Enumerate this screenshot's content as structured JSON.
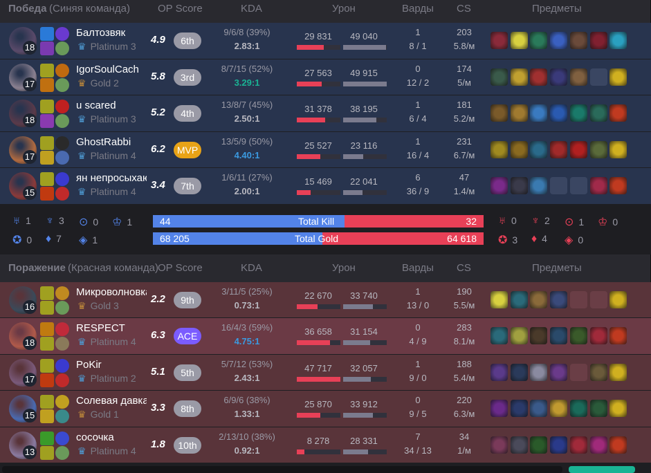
{
  "headers": {
    "ops": "OP Score",
    "kda": "KDA",
    "dmg": "Урон",
    "wards": "Варды",
    "cs": "CS",
    "items": "Предметы"
  },
  "blue": {
    "result": "Победа",
    "team": "(Синяя команда)",
    "color": "#5383e8"
  },
  "red": {
    "result": "Поражение",
    "team": "(Красная команда)",
    "color": "#e84057"
  },
  "players_blue": [
    {
      "name": "Балтозвяк",
      "level": "18",
      "tier": "Platinum 3",
      "tier_color": "#4e9bd3",
      "score": "4.9",
      "badge": "6th",
      "kda": "9/6/8 (39%)",
      "ratio": "2.83:1",
      "dealt": 29831,
      "taken": 49040,
      "dealt_label": "29 831",
      "taken_label": "49 040",
      "wards": "1",
      "wards2": "8 / 1",
      "cs": "203",
      "csm": "5.8/м",
      "items": [
        "#8a2a3a",
        "#d8d040",
        "#2a7a5a",
        "#3a60c0",
        "#6a4a3a",
        "#802030",
        "#2aa0c0"
      ],
      "avatar": "#5a4a6a",
      "spells": [
        "#2a7ad8",
        "#6a3ad0",
        "#7a3ab0",
        "#6a9a5a"
      ]
    },
    {
      "name": "IgorSoulCach",
      "level": "17",
      "tier": "Gold 2",
      "tier_color": "#c08a3a",
      "score": "5.8",
      "badge": "3rd",
      "kda": "8/7/15 (52%)",
      "ratio": "3.29:1",
      "ratio_color": "#1ab394",
      "dealt": 27563,
      "taken": 49915,
      "dealt_label": "27 563",
      "taken_label": "49 915",
      "wards": "0",
      "wards2": "12 / 2",
      "cs": "174",
      "csm": "5/м",
      "items": [
        "#3a5a4a",
        "#c0a030",
        "#a03030",
        "#3a3a7a",
        "#806040",
        "empty",
        "#d0b020"
      ],
      "avatar": "#8a8090",
      "spells": [
        "#a0a020",
        "#c06a10",
        "#c07010",
        "#6a9a5a"
      ]
    },
    {
      "name": "u scared",
      "level": "18",
      "tier": "Platinum 3",
      "tier_color": "#4e9bd3",
      "score": "5.2",
      "badge": "4th",
      "kda": "13/8/7 (45%)",
      "ratio": "2.50:1",
      "dealt": 31378,
      "taken": 38195,
      "dealt_label": "31 378",
      "taken_label": "38 195",
      "wards": "1",
      "wards2": "6 / 4",
      "cs": "181",
      "csm": "5.2/м",
      "items": [
        "#7a5a2a",
        "#a07a30",
        "#3a7ac0",
        "#2a5ab0",
        "#1a7a6a",
        "#2a6a5a",
        "#c03a20"
      ],
      "avatar": "#5a3a4a",
      "spells": [
        "#a0a020",
        "#c02020",
        "#8a3ab0",
        "#6a9a5a"
      ]
    },
    {
      "name": "GhostRabbi",
      "level": "17",
      "tier": "Platinum 4",
      "tier_color": "#4e9bd3",
      "score": "6.2",
      "badge": "MVP",
      "badge_color": "#e8a317",
      "kda": "13/5/9 (50%)",
      "ratio": "4.40:1",
      "ratio_color": "#3b9ae1",
      "dealt": 25527,
      "taken": 23116,
      "dealt_label": "25 527",
      "taken_label": "23 116",
      "wards": "1",
      "wards2": "16 / 4",
      "cs": "231",
      "csm": "6.7/м",
      "items": [
        "#a08a20",
        "#8a6a20",
        "#2a6a8a",
        "#a02a2a",
        "#b02020",
        "#5a6a3a",
        "#d0b020"
      ],
      "avatar": "#b06a40",
      "spells": [
        "#a0a020",
        "#2a2a2a",
        "#c0a020",
        "#4a6ab0"
      ]
    },
    {
      "name": "ян непросыхаю",
      "level": "15",
      "tier": "Platinum 4",
      "tier_color": "#4e9bd3",
      "score": "3.4",
      "badge": "7th",
      "kda": "1/6/11 (27%)",
      "ratio": "2.00:1",
      "dealt": 15469,
      "taken": 22041,
      "dealt_label": "15 469",
      "taken_label": "22 041",
      "wards": "6",
      "wards2": "36 / 9",
      "cs": "47",
      "csm": "1.4/м",
      "items": [
        "#7a2a8a",
        "#3a3a4a",
        "#3a7ab0",
        "empty",
        "empty",
        "#a02a4a",
        "#c03a20"
      ],
      "avatar": "#8a3a3a",
      "spells": [
        "#a0a020",
        "#3a3ad0",
        "#c03a10",
        "#c02a2a"
      ]
    }
  ],
  "players_red": [
    {
      "name": "Микроволновка",
      "level": "16",
      "tier": "Gold 3",
      "tier_color": "#c08a3a",
      "score": "2.2",
      "badge": "9th",
      "kda": "3/11/5 (25%)",
      "ratio": "0.73:1",
      "dealt": 22670,
      "taken": 33740,
      "dealt_label": "22 670",
      "taken_label": "33 740",
      "wards": "1",
      "wards2": "13 / 0",
      "cs": "190",
      "csm": "5.5/м",
      "items": [
        "#d8d040",
        "#2a6a7a",
        "#8a6a3a",
        "#3a4a7a",
        "empty",
        "empty",
        "#d0b020"
      ],
      "avatar": "#3a4a5a",
      "spells": [
        "#a0a020",
        "#c08a20",
        "#a0a020",
        "#6a9a5a"
      ]
    },
    {
      "name": "RESPECT",
      "level": "18",
      "tier": "Platinum 4",
      "tier_color": "#4e9bd3",
      "score": "6.3",
      "badge": "ACE",
      "badge_color": "#7b5cff",
      "kda": "16/4/3 (59%)",
      "ratio": "4.75:1",
      "ratio_color": "#3b9ae1",
      "dealt": 36658,
      "taken": 31154,
      "dealt_label": "36 658",
      "taken_label": "31 154",
      "wards": "0",
      "wards2": "4 / 9",
      "cs": "283",
      "csm": "8.1/м",
      "items": [
        "#2a6a7a",
        "#a0a040",
        "#4a3a2a",
        "#2a4a6a",
        "#3a5a2a",
        "#a02a3a",
        "#c03a20"
      ],
      "avatar": "#b05a4a",
      "spells": [
        "#c07a10",
        "#c02a3a",
        "#a0a020",
        "#8a7a5a"
      ]
    },
    {
      "name": "PoKir",
      "level": "17",
      "tier": "Platinum 2",
      "tier_color": "#4e9bd3",
      "score": "5.1",
      "badge": "5th",
      "kda": "5/7/12 (53%)",
      "ratio": "2.43:1",
      "dealt": 47717,
      "taken": 32057,
      "dealt_label": "47 717",
      "taken_label": "32 057",
      "wards": "1",
      "wards2": "9 / 0",
      "cs": "188",
      "csm": "5.4/м",
      "items": [
        "#5a3a8a",
        "#2a3a5a",
        "#8a8aa0",
        "#6a3a8a",
        "empty",
        "#6a5a3a",
        "#d0b020"
      ],
      "avatar": "#7a5a7a",
      "spells": [
        "#a0a020",
        "#3a3ad0",
        "#c03a10",
        "#c02a2a"
      ]
    },
    {
      "name": "Солевая давка",
      "level": "15",
      "tier": "Gold 1",
      "tier_color": "#c08a3a",
      "score": "3.3",
      "badge": "8th",
      "kda": "6/9/6 (38%)",
      "ratio": "1.33:1",
      "dealt": 25870,
      "taken": 33912,
      "dealt_label": "25 870",
      "taken_label": "33 912",
      "wards": "0",
      "wards2": "9 / 5",
      "cs": "220",
      "csm": "6.3/м",
      "items": [
        "#6a2a8a",
        "#2a3a6a",
        "#3a5a8a",
        "#c09a30",
        "#1a6a5a",
        "#2a5a3a",
        "#d0b020"
      ],
      "avatar": "#4a6ab0",
      "spells": [
        "#a0a020",
        "#c0a020",
        "#c0a020",
        "#3a8a8a"
      ]
    },
    {
      "name": "сосочка",
      "level": "13",
      "tier": "Platinum 4",
      "tier_color": "#4e9bd3",
      "score": "1.8",
      "badge": "10th",
      "kda": "2/13/10 (38%)",
      "ratio": "0.92:1",
      "dealt": 8278,
      "taken": 28331,
      "dealt_label": "8 278",
      "taken_label": "28 331",
      "wards": "7",
      "wards2": "34 / 13",
      "cs": "34",
      "csm": "1/м",
      "items": [
        "#7a3a5a",
        "#4a4a5a",
        "#2a5a2a",
        "#2a3a8a",
        "#a02a3a",
        "#a02a7a",
        "#c03a20"
      ],
      "avatar": "#8a7aa0",
      "spells": [
        "#3a9a2a",
        "#3a4ad0",
        "#a0a020",
        "#6a9a5a"
      ]
    }
  ],
  "summary": {
    "blue_objectives": [
      {
        "icon": "baron-icon",
        "count": "1"
      },
      {
        "icon": "dragon-icon",
        "count": "3"
      },
      {
        "icon": "herald-icon",
        "count": "0"
      },
      {
        "icon": "grubs-icon",
        "count": "1"
      },
      {
        "icon": "tower-icon",
        "count": "0"
      },
      {
        "icon": "inhibitor-icon",
        "count": "7"
      },
      {
        "icon": "atakhan-icon",
        "count": "1"
      }
    ],
    "red_objectives": [
      {
        "icon": "baron-icon",
        "count": "0"
      },
      {
        "icon": "dragon-icon",
        "count": "2"
      },
      {
        "icon": "herald-icon",
        "count": "1"
      },
      {
        "icon": "grubs-icon",
        "count": "0"
      },
      {
        "icon": "tower-icon",
        "count": "3"
      },
      {
        "icon": "inhibitor-icon",
        "count": "4"
      },
      {
        "icon": "atakhan-icon",
        "count": "0"
      }
    ],
    "kill": {
      "label": "Total Kill",
      "blue": "44",
      "red": "32",
      "blue_value": 44,
      "red_value": 32
    },
    "gold": {
      "label": "Total Gold",
      "blue": "68 205",
      "red": "64 618",
      "blue_value": 68205,
      "red_value": 64618
    }
  }
}
